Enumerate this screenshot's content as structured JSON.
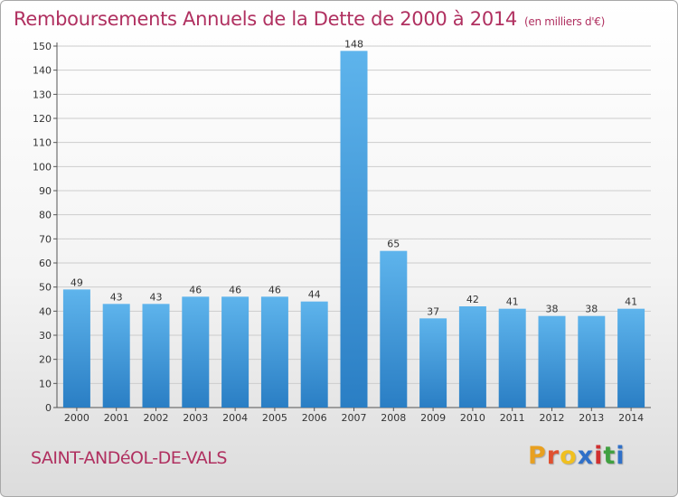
{
  "header": {
    "title": "Remboursements Annuels de la Dette de 2000 à 2014",
    "unit": "(en milliers d'€)"
  },
  "footer": {
    "commune": "SAINT-ANDéOL-DE-VALS",
    "logo_text": "Proxiti",
    "logo_colors": [
      "#e8a020",
      "#e05030",
      "#f0c020",
      "#3070c8",
      "#d03030",
      "#40a040",
      "#3070c8"
    ]
  },
  "colors": {
    "accent": "#b03060",
    "bar_top": "#5eb4ec",
    "bar_bottom": "#2a7ec4",
    "grid": "#cccccc",
    "axis_text": "#333333"
  },
  "chart_data": {
    "type": "bar",
    "categories": [
      "2000",
      "2001",
      "2002",
      "2003",
      "2004",
      "2005",
      "2006",
      "2007",
      "2008",
      "2009",
      "2010",
      "2011",
      "2012",
      "2013",
      "2014"
    ],
    "values": [
      49,
      43,
      43,
      46,
      46,
      46,
      44,
      148,
      65,
      37,
      42,
      41,
      38,
      38,
      41
    ],
    "ylim": [
      0,
      150
    ],
    "yticks": [
      0,
      10,
      20,
      30,
      40,
      50,
      60,
      70,
      80,
      90,
      100,
      110,
      120,
      130,
      140,
      150
    ],
    "grid": true,
    "data_labels": true
  }
}
